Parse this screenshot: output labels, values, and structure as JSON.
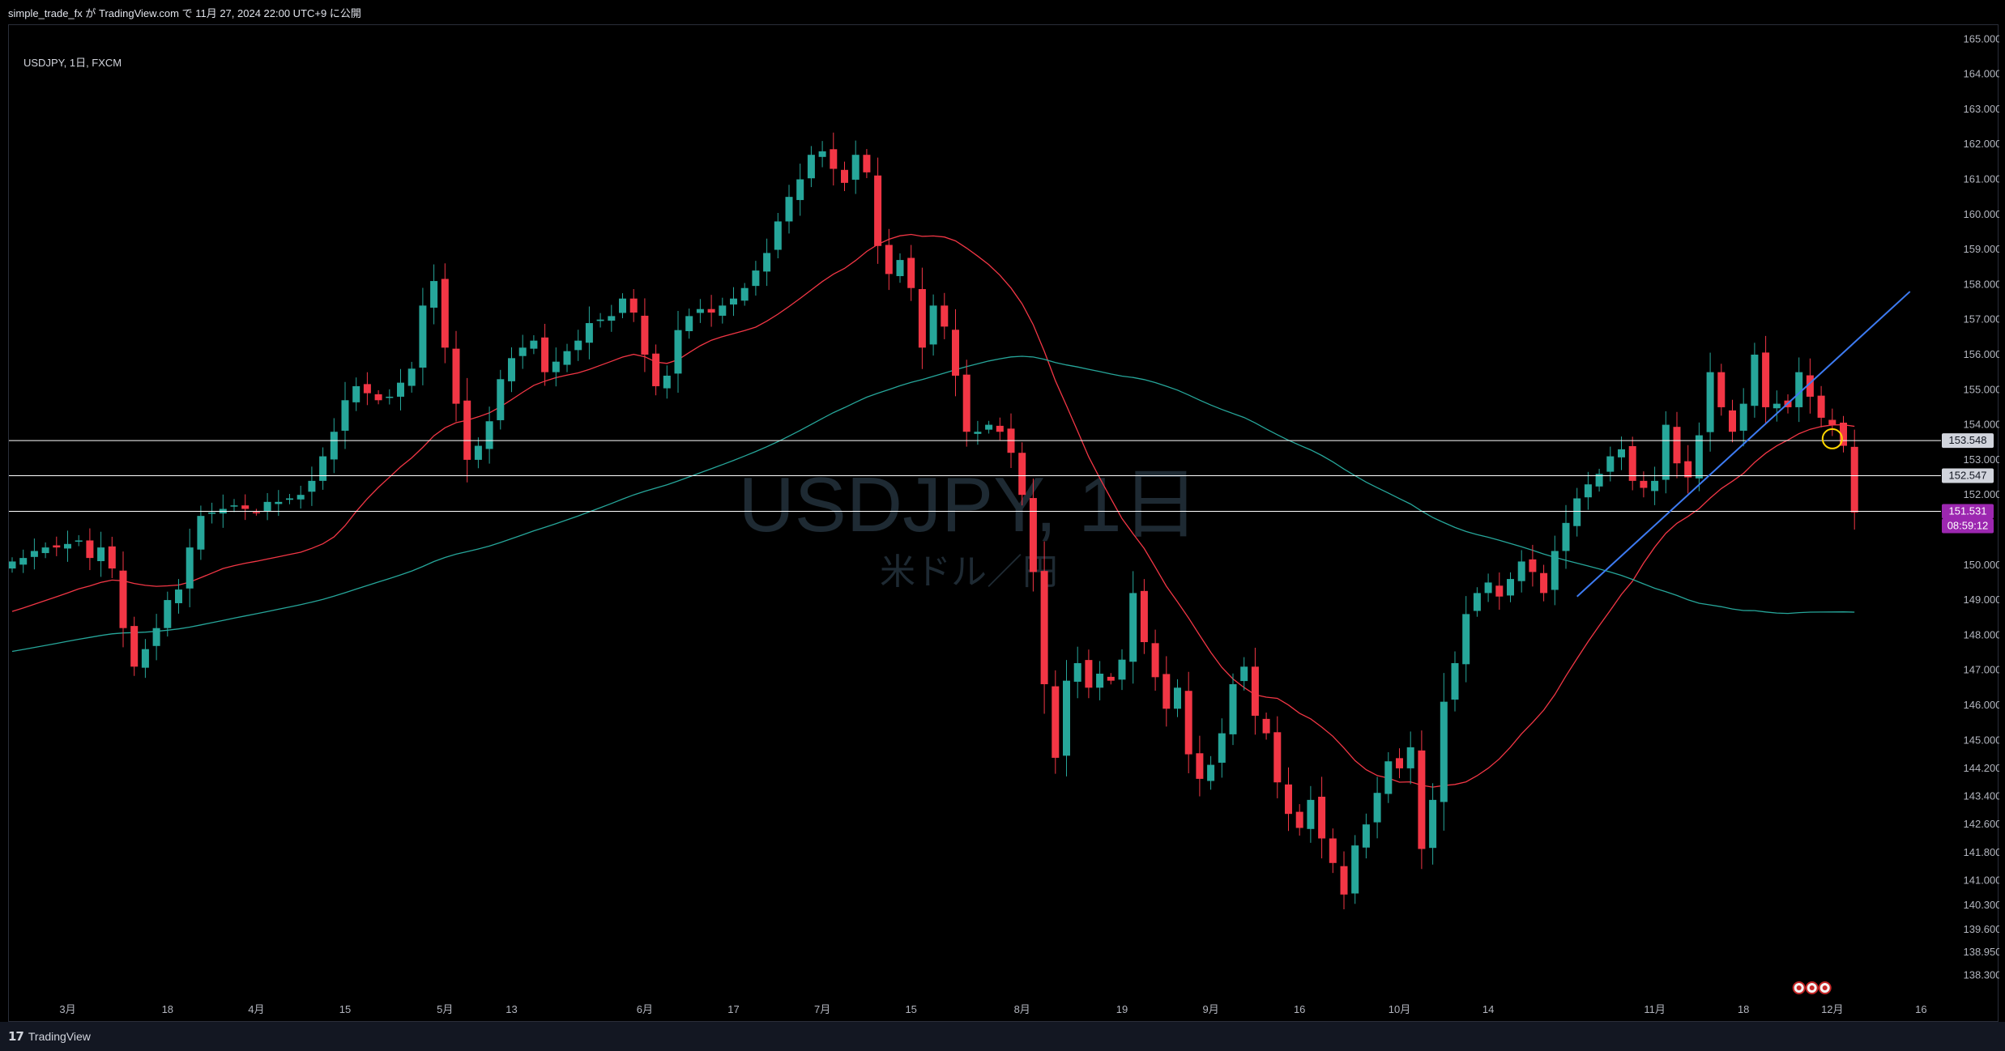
{
  "header": {
    "publish_line": "simple_trade_fx が TradingView.com で 11月 27, 2024 22:00 UTC+9 に公開"
  },
  "symbol_info": "USDJPY, 1日, FXCM",
  "watermark": {
    "main": "USDJPY, 1日",
    "sub": "米ドル／円"
  },
  "footer": {
    "brand": "TradingView"
  },
  "colors": {
    "up": "#26a69a",
    "down": "#f23645",
    "ma_fast": "#f23645",
    "ma_slow": "#26a69a",
    "trendline": "#3d7bf2",
    "hline": "#ffffff",
    "current_tag": "#9c27b0"
  },
  "chart_data": {
    "type": "candlestick",
    "symbol": "USDJPY",
    "timeframe": "1日",
    "ylim": [
      137.8,
      165.4
    ],
    "y_ticks": [
      {
        "v": 165.0,
        "label": "165.000"
      },
      {
        "v": 164.0,
        "label": "164.000"
      },
      {
        "v": 163.0,
        "label": "163.000"
      },
      {
        "v": 162.0,
        "label": "162.000"
      },
      {
        "v": 161.0,
        "label": "161.000"
      },
      {
        "v": 160.0,
        "label": "160.000"
      },
      {
        "v": 159.0,
        "label": "159.000"
      },
      {
        "v": 158.0,
        "label": "158.000"
      },
      {
        "v": 157.0,
        "label": "157.000"
      },
      {
        "v": 156.0,
        "label": "156.000"
      },
      {
        "v": 155.0,
        "label": "155.000"
      },
      {
        "v": 154.0,
        "label": "154.000"
      },
      {
        "v": 153.0,
        "label": "153.000"
      },
      {
        "v": 152.0,
        "label": "152.000"
      },
      {
        "v": 150.0,
        "label": "150.000"
      },
      {
        "v": 149.0,
        "label": "149.000"
      },
      {
        "v": 148.0,
        "label": "148.000"
      },
      {
        "v": 147.0,
        "label": "147.000"
      },
      {
        "v": 146.0,
        "label": "146.000"
      },
      {
        "v": 145.0,
        "label": "145.000"
      },
      {
        "v": 144.2,
        "label": "144.200"
      },
      {
        "v": 143.4,
        "label": "143.400"
      },
      {
        "v": 142.6,
        "label": "142.600"
      },
      {
        "v": 141.8,
        "label": "141.800"
      },
      {
        "v": 141.0,
        "label": "141.000"
      },
      {
        "v": 140.3,
        "label": "140.300"
      },
      {
        "v": 139.6,
        "label": "139.600"
      },
      {
        "v": 138.95,
        "label": "138.950"
      },
      {
        "v": 138.3,
        "label": "138.300"
      }
    ],
    "x_ticks": [
      {
        "i": 5,
        "label": "3月"
      },
      {
        "i": 14,
        "label": "18"
      },
      {
        "i": 22,
        "label": "4月"
      },
      {
        "i": 30,
        "label": "15"
      },
      {
        "i": 39,
        "label": "5月"
      },
      {
        "i": 45,
        "label": "13"
      },
      {
        "i": 57,
        "label": "6月"
      },
      {
        "i": 65,
        "label": "17"
      },
      {
        "i": 73,
        "label": "7月"
      },
      {
        "i": 81,
        "label": "15"
      },
      {
        "i": 91,
        "label": "8月"
      },
      {
        "i": 100,
        "label": "19"
      },
      {
        "i": 108,
        "label": "9月"
      },
      {
        "i": 116,
        "label": "16"
      },
      {
        "i": 125,
        "label": "10月"
      },
      {
        "i": 133,
        "label": "14"
      },
      {
        "i": 148,
        "label": "11月"
      },
      {
        "i": 156,
        "label": "18"
      },
      {
        "i": 164,
        "label": "12月"
      },
      {
        "i": 172,
        "label": "16"
      }
    ],
    "closes": [
      150.1,
      150.2,
      150.4,
      150.5,
      150.5,
      150.6,
      150.7,
      150.2,
      150.5,
      149.9,
      148.2,
      147.1,
      147.6,
      148.2,
      149.0,
      149.3,
      150.5,
      151.4,
      151.5,
      151.6,
      151.7,
      151.6,
      151.5,
      151.8,
      151.8,
      151.9,
      152.0,
      152.4,
      153.1,
      153.8,
      154.7,
      155.1,
      154.9,
      154.7,
      154.8,
      155.2,
      155.6,
      157.4,
      158.1,
      156.2,
      154.6,
      153.0,
      153.4,
      154.1,
      155.3,
      155.9,
      156.2,
      156.4,
      155.5,
      155.8,
      156.1,
      156.4,
      156.9,
      157.0,
      157.1,
      157.6,
      157.2,
      156.0,
      155.1,
      155.4,
      156.7,
      157.1,
      157.3,
      157.2,
      157.4,
      157.6,
      157.9,
      158.4,
      158.9,
      159.8,
      160.5,
      161.0,
      161.7,
      161.8,
      161.3,
      160.9,
      161.7,
      161.2,
      159.1,
      158.3,
      158.7,
      157.9,
      156.2,
      157.4,
      156.8,
      155.4,
      153.8,
      153.8,
      154.0,
      153.8,
      153.2,
      152.0,
      149.8,
      146.6,
      144.5,
      146.7,
      147.2,
      146.5,
      146.9,
      146.7,
      147.3,
      149.2,
      147.8,
      146.8,
      145.9,
      146.5,
      144.6,
      143.9,
      144.3,
      145.2,
      146.6,
      147.1,
      145.7,
      145.2,
      143.8,
      142.9,
      142.5,
      143.3,
      142.2,
      141.5,
      140.6,
      142.0,
      142.6,
      143.5,
      144.4,
      144.2,
      144.8,
      141.9,
      143.3,
      146.1,
      147.2,
      148.6,
      149.2,
      149.5,
      149.1,
      149.6,
      150.1,
      149.8,
      149.2,
      150.4,
      151.2,
      151.9,
      152.3,
      152.6,
      153.1,
      153.3,
      152.4,
      152.2,
      152.4,
      154.0,
      152.9,
      152.5,
      153.7,
      155.5,
      154.5,
      153.8,
      154.6,
      156.0,
      154.5,
      154.6,
      154.5,
      155.5,
      154.8,
      154.2,
      154.0,
      153.4,
      151.5
    ],
    "opens_start": 149.9,
    "current_price": 151.531,
    "countdown": "08:59:12",
    "horizontal_lines": [
      {
        "v": 153.548,
        "label": "153.548"
      },
      {
        "v": 152.547,
        "label": "152.547"
      },
      {
        "v": 151.531,
        "label": "151.531"
      }
    ],
    "trendline": {
      "from": {
        "i": 141,
        "v": 149.1
      },
      "to": {
        "i": 171,
        "v": 157.8
      }
    },
    "ma_fast_period": 20,
    "ma_slow_period": 75,
    "marker_circle": {
      "i": 164,
      "v": 153.6
    }
  }
}
